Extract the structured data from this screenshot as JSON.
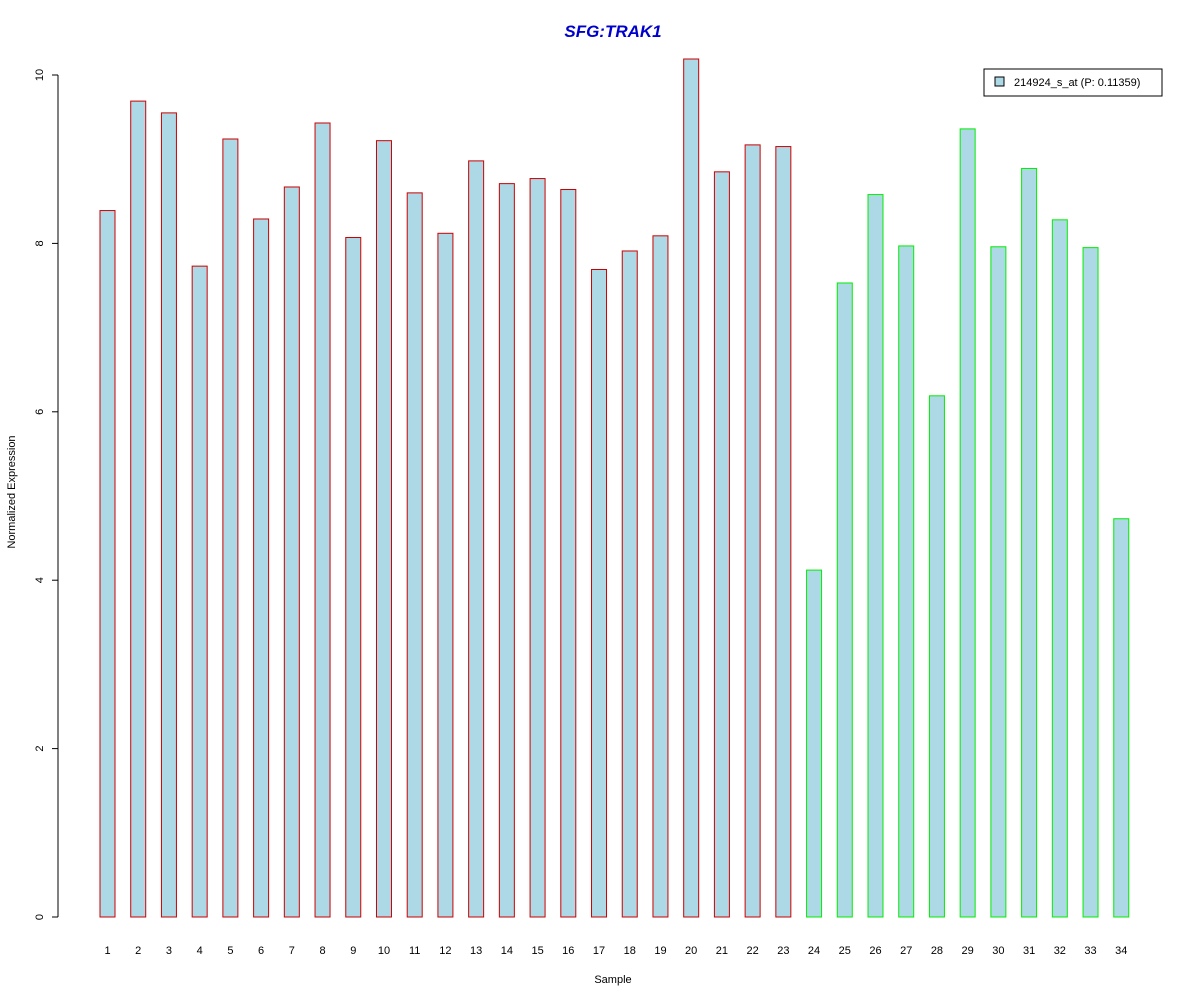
{
  "chart_data": {
    "type": "bar",
    "title": "SFG:TRAK1",
    "xlabel": "Sample",
    "ylabel": "Normalized Expression",
    "ylim": [
      0,
      10
    ],
    "yticks": [
      0,
      2,
      4,
      6,
      8,
      10
    ],
    "grid": false,
    "legend_position": "top-right",
    "legend": [
      {
        "label": "214924_s_at (P: 0.11359)",
        "color": "#add8e6"
      }
    ],
    "categories": [
      "1",
      "2",
      "3",
      "4",
      "5",
      "6",
      "7",
      "8",
      "9",
      "10",
      "11",
      "12",
      "13",
      "14",
      "15",
      "16",
      "17",
      "18",
      "19",
      "20",
      "21",
      "22",
      "23",
      "24",
      "25",
      "26",
      "27",
      "28",
      "29",
      "30",
      "31",
      "32",
      "33",
      "34"
    ],
    "values": [
      8.39,
      9.69,
      9.55,
      7.73,
      9.24,
      8.29,
      8.67,
      9.43,
      8.07,
      9.22,
      8.6,
      8.12,
      8.98,
      8.71,
      8.77,
      8.64,
      7.69,
      7.91,
      8.09,
      10.19,
      8.85,
      9.17,
      9.15,
      4.12,
      7.53,
      8.58,
      7.97,
      6.19,
      9.36,
      7.96,
      8.89,
      8.28,
      7.95,
      4.73
    ],
    "groups": [
      "red",
      "red",
      "red",
      "red",
      "red",
      "red",
      "red",
      "red",
      "red",
      "red",
      "red",
      "red",
      "red",
      "red",
      "red",
      "red",
      "red",
      "red",
      "red",
      "red",
      "red",
      "red",
      "red",
      "green",
      "green",
      "green",
      "green",
      "green",
      "green",
      "green",
      "green",
      "green",
      "green",
      "green"
    ],
    "colors": {
      "fill": "#add8e6",
      "red": "#cc0000",
      "green": "#00ee00",
      "title": "#0000cc"
    }
  }
}
